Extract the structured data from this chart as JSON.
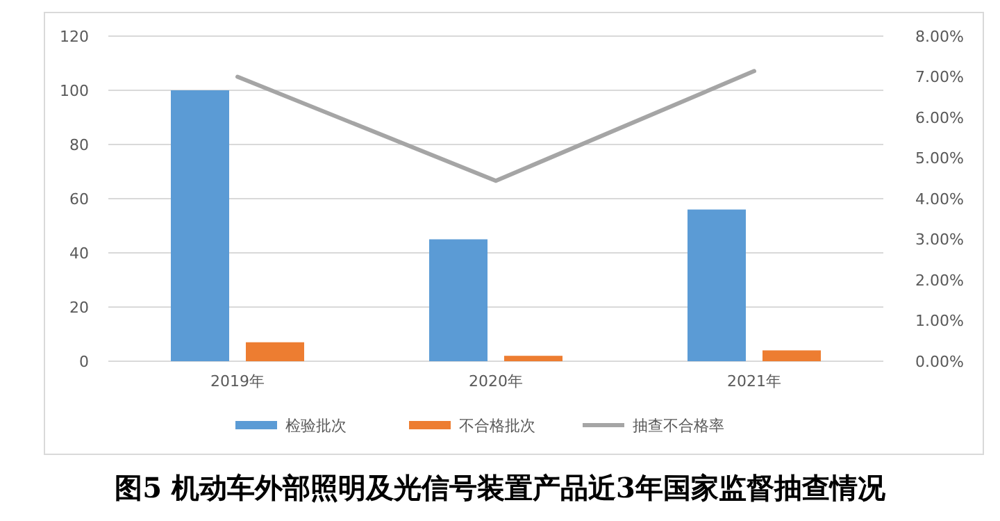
{
  "chart_data": {
    "type": "bar",
    "title": "图5 机动车外部照明及光信号装置产品近3年国家监督抽查情况",
    "categories": [
      "2019年",
      "2020年",
      "2021年"
    ],
    "series": [
      {
        "name": "检验批次",
        "color": "#5b9bd5",
        "values": [
          100,
          45,
          56
        ]
      },
      {
        "name": "不合格批次",
        "color": "#ed7d31",
        "values": [
          7,
          2,
          4
        ]
      },
      {
        "name": "抽查不合格率",
        "type": "line",
        "axis": "y2",
        "color": "#a5a5a5",
        "values": [
          7.0,
          4.44,
          7.14
        ]
      }
    ],
    "ylim": [
      0,
      120
    ],
    "yticks": [
      0,
      20,
      40,
      60,
      80,
      100,
      120
    ],
    "y2lim": [
      0,
      8
    ],
    "y2ticks": [
      {
        "value": 0,
        "label": "0.00%"
      },
      {
        "value": 1,
        "label": "1.00%"
      },
      {
        "value": 2,
        "label": "2.00%"
      },
      {
        "value": 3,
        "label": "3.00%"
      },
      {
        "value": 4,
        "label": "4.00%"
      },
      {
        "value": 5,
        "label": "5.00%"
      },
      {
        "value": 6,
        "label": "6.00%"
      },
      {
        "value": 7,
        "label": "7.00%"
      },
      {
        "value": 8,
        "label": "8.00%"
      }
    ],
    "grid": "y",
    "legend": "bottom"
  }
}
